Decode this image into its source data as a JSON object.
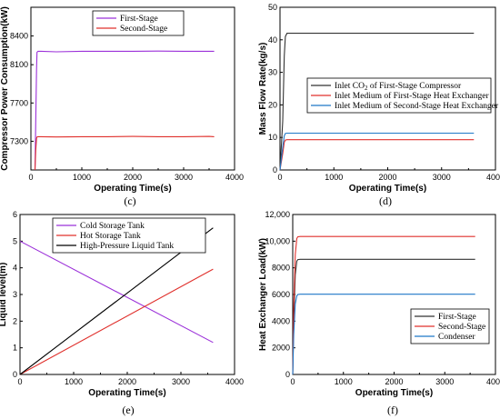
{
  "chart_data": [
    {
      "id": "c",
      "type": "line",
      "panel_label": "(c)",
      "xlabel": "Operating Time(s)",
      "ylabel": "Compressor Power Consumption(kW)",
      "xlim": [
        0,
        4000
      ],
      "ylim": [
        7000,
        8700
      ],
      "xticks": [
        0,
        1000,
        2000,
        3000,
        4000
      ],
      "yticks": [
        7300,
        7700,
        8100,
        8400
      ],
      "legend_position": "top-left",
      "series": [
        {
          "name": "First-Stage",
          "color": "#9b30d9",
          "x": [
            80,
            95,
            110,
            120,
            140,
            200,
            500,
            1000,
            1500,
            2000,
            2500,
            3000,
            3500,
            3600
          ],
          "y": [
            7000,
            7500,
            8050,
            8230,
            8240,
            8240,
            8235,
            8240,
            8240,
            8240,
            8242,
            8240,
            8240,
            8240
          ]
        },
        {
          "name": "Second-Stage",
          "color": "#e0302c",
          "x": [
            80,
            95,
            110,
            120,
            140,
            200,
            500,
            1000,
            1500,
            2000,
            2500,
            3000,
            3500,
            3600
          ],
          "y": [
            7000,
            7200,
            7330,
            7345,
            7348,
            7348,
            7345,
            7348,
            7348,
            7350,
            7348,
            7348,
            7350,
            7348
          ]
        }
      ]
    },
    {
      "id": "d",
      "type": "line",
      "panel_label": "(d)",
      "xlabel": "Operating Time(s)",
      "ylabel": "Mass Flow Rate(kg/s)",
      "xlim": [
        0,
        4000
      ],
      "ylim": [
        0,
        50
      ],
      "xticks": [
        0,
        1000,
        2000,
        3000,
        4000
      ],
      "yticks": [
        0,
        10,
        20,
        30,
        40,
        50
      ],
      "legend_position": "center-right",
      "series": [
        {
          "name_prefix": "Inlet CO",
          "name_sub": "2",
          "name_suffix": " of First-Stage Compressor",
          "color": "#333333",
          "x": [
            0,
            50,
            80,
            100,
            130,
            500,
            1000,
            2000,
            3000,
            3600
          ],
          "y": [
            0,
            15,
            35,
            41,
            42,
            42,
            42,
            42,
            42,
            42
          ]
        },
        {
          "name": "Inlet Medium  of First-Stage Heat Exchanger",
          "color": "#e0302c",
          "x": [
            0,
            50,
            80,
            100,
            130,
            500,
            1000,
            2000,
            3000,
            3600
          ],
          "y": [
            0,
            5,
            8.5,
            9.2,
            9.3,
            9.3,
            9.3,
            9.3,
            9.3,
            9.3
          ]
        },
        {
          "name": "Inlet Medium  of Second-Stage Heat Exchanger",
          "color": "#1f78c8",
          "x": [
            0,
            50,
            80,
            100,
            130,
            500,
            1000,
            2000,
            3000,
            3600
          ],
          "y": [
            0,
            7,
            10.5,
            11.2,
            11.3,
            11.3,
            11.3,
            11.3,
            11.3,
            11.3
          ]
        }
      ]
    },
    {
      "id": "e",
      "type": "line",
      "panel_label": "(e)",
      "xlabel": "Operating Time(s)",
      "ylabel": "Liquid level(m)",
      "xlim": [
        0,
        4000
      ],
      "ylim": [
        0,
        6
      ],
      "xticks": [
        0,
        1000,
        2000,
        3000,
        4000
      ],
      "yticks": [
        0,
        1,
        2,
        3,
        4,
        5,
        6
      ],
      "legend_position": "top-left",
      "series": [
        {
          "name": "Cold Storage Tank",
          "color": "#9b30d9",
          "x": [
            0,
            3600
          ],
          "y": [
            5.0,
            1.2
          ]
        },
        {
          "name": "Hot Storage Tank",
          "color": "#e0302c",
          "x": [
            0,
            3600
          ],
          "y": [
            0,
            3.95
          ]
        },
        {
          "name": "High-Pressure Liquid Tank",
          "color": "#000000",
          "x": [
            0,
            3600
          ],
          "y": [
            0,
            5.5
          ]
        }
      ]
    },
    {
      "id": "f",
      "type": "line",
      "panel_label": "(f)",
      "xlabel": "Operating Time(s)",
      "ylabel": "Heat Exchanger Load(kW)",
      "xlim": [
        0,
        4000
      ],
      "ylim": [
        0,
        12000
      ],
      "xticks": [
        0,
        1000,
        2000,
        3000,
        4000
      ],
      "yticks": [
        0,
        2000,
        4000,
        6000,
        8000,
        10000,
        12000
      ],
      "ytick_labels": [
        "0",
        "2000",
        "4000",
        "6000",
        "8000",
        "10,000",
        "12,000"
      ],
      "legend_position": "bottom-right",
      "series": [
        {
          "name": "First-Stage",
          "color": "#333333",
          "x": [
            0,
            20,
            50,
            80,
            100,
            150,
            500,
            1000,
            2000,
            3000,
            3600
          ],
          "y": [
            0,
            4000,
            7500,
            8500,
            8620,
            8640,
            8640,
            8640,
            8640,
            8640,
            8640
          ]
        },
        {
          "name": "Second-Stage",
          "color": "#e0302c",
          "x": [
            0,
            20,
            50,
            80,
            100,
            150,
            500,
            1000,
            2000,
            3000,
            3600
          ],
          "y": [
            0,
            5000,
            9000,
            10200,
            10330,
            10350,
            10350,
            10350,
            10350,
            10350,
            10350
          ]
        },
        {
          "name": "Condenser",
          "color": "#1f78c8",
          "x": [
            0,
            20,
            50,
            80,
            100,
            150,
            500,
            1000,
            2000,
            3000,
            3600
          ],
          "y": [
            0,
            3000,
            5300,
            5900,
            6000,
            6020,
            6020,
            6020,
            6020,
            6020,
            6020
          ]
        }
      ]
    }
  ]
}
